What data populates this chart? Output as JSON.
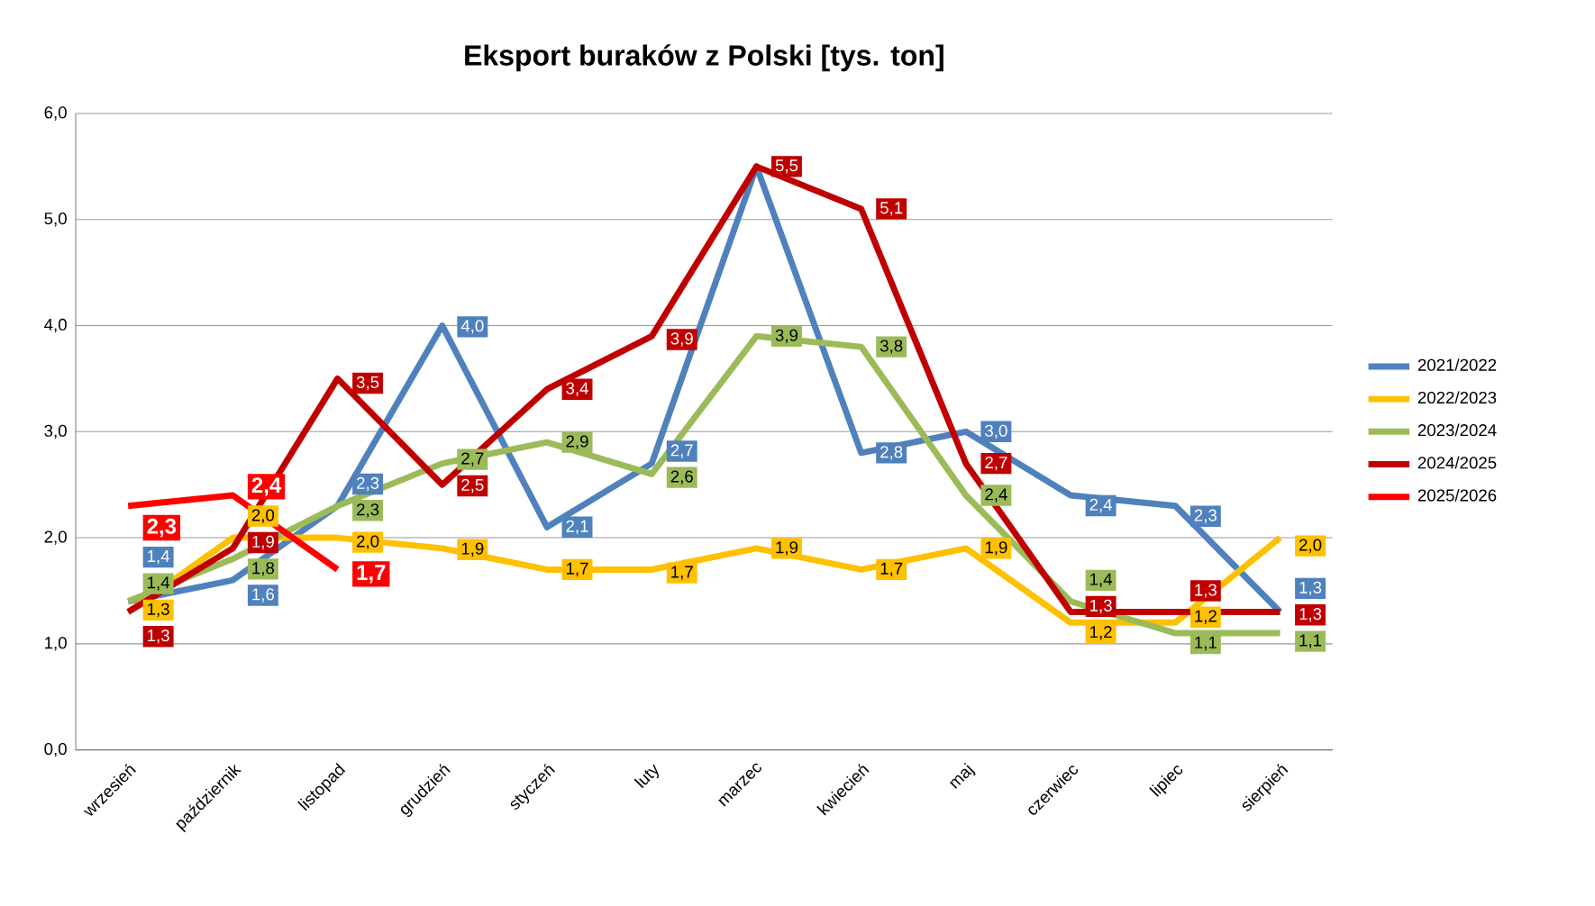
{
  "chart_data": {
    "type": "line",
    "title": "Eksport buraków z Polski [tys. ton]",
    "categories": [
      "wrzesień",
      "październik",
      "listopad",
      "grudzień",
      "styczeń",
      "luty",
      "marzec",
      "kwiecień",
      "maj",
      "czerwiec",
      "lipiec",
      "sierpień"
    ],
    "ylim": [
      0,
      6
    ],
    "yticks": [
      {
        "value": 0,
        "label": "0,0"
      },
      {
        "value": 1,
        "label": "1,0"
      },
      {
        "value": 2,
        "label": "2,0"
      },
      {
        "value": 3,
        "label": "3,0"
      },
      {
        "value": 4,
        "label": "4,0"
      },
      {
        "value": 5,
        "label": "5,0"
      },
      {
        "value": 6,
        "label": "6,0"
      }
    ],
    "grid": "y",
    "legend": "right",
    "marker": "none",
    "series": [
      {
        "name": "2021/2022",
        "color": "#4f81bd",
        "values": [
          1.4,
          1.6,
          2.3,
          4.0,
          2.1,
          2.7,
          5.5,
          2.8,
          3.0,
          2.4,
          2.3,
          1.3
        ],
        "value_labels": [
          "1,4",
          "1,6",
          "2,3",
          "4,0",
          "2,1",
          "2,7",
          null,
          "2,8",
          "3,0",
          "2,4",
          "2,3",
          "1,3"
        ]
      },
      {
        "name": "2022/2023",
        "color": "#ffc000",
        "values": [
          1.3,
          2.0,
          2.0,
          1.9,
          1.7,
          1.7,
          1.9,
          1.7,
          1.9,
          1.2,
          1.2,
          2.0
        ],
        "value_labels": [
          "1,3",
          "2,0",
          "2,0",
          "1,9",
          "1,7",
          "1,7",
          "1,9",
          "1,7",
          "1,9",
          "1,2",
          "1,2",
          "2,0"
        ]
      },
      {
        "name": "2023/2024",
        "color": "#9bbb59",
        "values": [
          1.4,
          1.8,
          2.3,
          2.7,
          2.9,
          2.6,
          3.9,
          3.8,
          2.4,
          1.4,
          1.1,
          1.1
        ],
        "value_labels": [
          "1,4",
          "1,8",
          "2,3",
          "2,7",
          "2,9",
          "2,6",
          "3,9",
          "3,8",
          "2,4",
          "1,4",
          "1,1",
          "1,1"
        ]
      },
      {
        "name": "2024/2025",
        "color": "#c00000",
        "values": [
          1.3,
          1.9,
          3.5,
          2.5,
          3.4,
          3.9,
          5.5,
          5.1,
          2.7,
          1.3,
          1.3,
          1.3
        ],
        "value_labels": [
          "1,3",
          "1,9",
          "3,5",
          "2,5",
          "3,4",
          "3,9",
          "5,5",
          "5,1",
          "2,7",
          "1,3",
          "1,3",
          "1,3"
        ]
      },
      {
        "name": "2025/2026",
        "color": "#ff0000",
        "values": [
          2.3,
          2.4,
          1.7,
          null,
          null,
          null,
          null,
          null,
          null,
          null,
          null,
          null
        ],
        "value_labels": [
          "2,3",
          "2,4",
          "1,7",
          null,
          null,
          null,
          null,
          null,
          null,
          null,
          null,
          null
        ]
      }
    ]
  }
}
